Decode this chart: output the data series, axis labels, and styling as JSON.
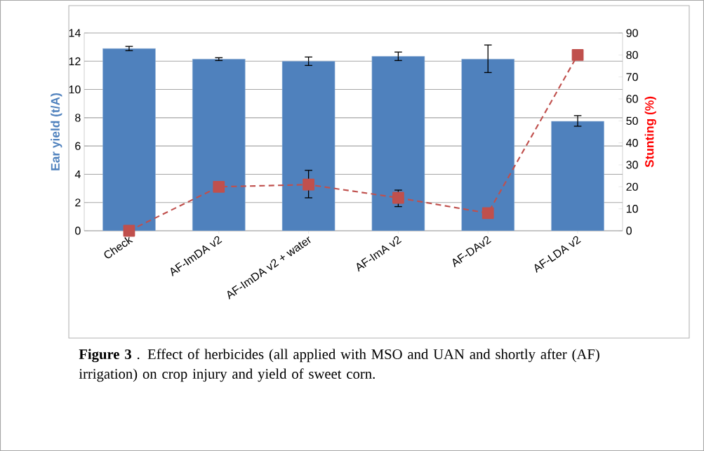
{
  "chart_data": {
    "type": "bar",
    "categories": [
      "Check",
      "AF-ImDA v2",
      "AF-ImDA v2 + water",
      "AF-ImA v2",
      "AF-DAv2",
      "AF-LDA v2"
    ],
    "series": [
      {
        "color": "#4f81bd",
        "values": [
          12.9,
          12.15,
          12.0,
          12.35,
          12.15,
          7.75
        ],
        "errors": [
          0.15,
          0.1,
          0.3,
          0.3,
          [
            11.2,
            13.15
          ],
          [
            7.4,
            8.15
          ]
        ]
      },
      {
        "type": "line",
        "axis": "y2",
        "color": "#c0504d",
        "marker": "square",
        "line_style": "dashed",
        "values": [
          0,
          20,
          21,
          15,
          8,
          80
        ],
        "errors": [
          null,
          null,
          [
            15,
            27.5
          ],
          [
            11,
            18.5
          ],
          null,
          null
        ]
      }
    ],
    "ylabel": "Ear yield (t/A)",
    "y2label": "Stunting (%)",
    "ylim": [
      0,
      14
    ],
    "yticks": [
      0,
      2,
      4,
      6,
      8,
      10,
      12,
      14
    ],
    "y2lim": [
      0,
      90
    ],
    "y2ticks": [
      0,
      10,
      20,
      30,
      40,
      50,
      60,
      70,
      80,
      90
    ],
    "grid": "y",
    "legend": false,
    "annotations": [
      "**Figure 3** . Effect of herbicides (all applied with MSO and UAN and shortly after (AF) irrigation) on crop injury and yield of sweet corn."
    ]
  }
}
